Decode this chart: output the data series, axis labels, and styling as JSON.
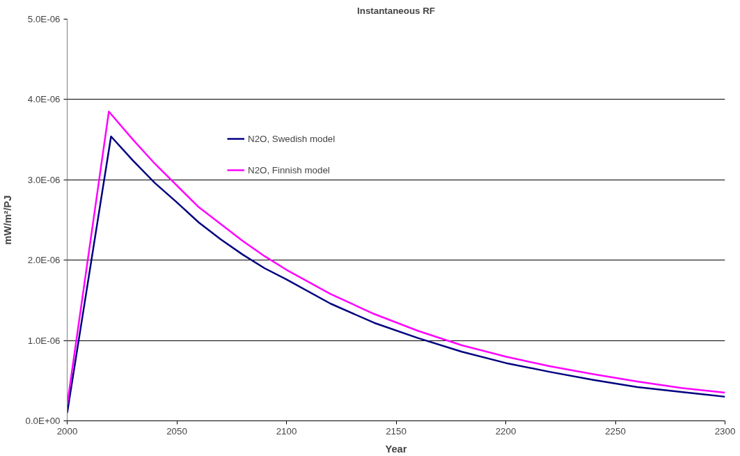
{
  "chart_data": {
    "type": "line",
    "title": "Instantaneous RF",
    "xlabel": "Year",
    "ylabel": "mW/m²/PJ",
    "x": [
      2000,
      2020,
      2030,
      2040,
      2050,
      2060,
      2070,
      2080,
      2090,
      2100,
      2120,
      2140,
      2160,
      2180,
      2200,
      2220,
      2240,
      2260,
      2280,
      2300
    ],
    "series": [
      {
        "name": "N2O, Swedish model",
        "color": "#000080",
        "values": [
          1e-07,
          3.54e-06,
          3.24e-06,
          2.96e-06,
          2.72e-06,
          2.47e-06,
          2.26e-06,
          2.07e-06,
          1.9e-06,
          1.76e-06,
          1.46e-06,
          1.22e-06,
          1.03e-06,
          8.6e-07,
          7.2e-07,
          6.1e-07,
          5.1e-07,
          4.2e-07,
          3.6e-07,
          3e-07
        ]
      },
      {
        "name": "N2O, Finnish model",
        "color": "#ff00ff",
        "x": [
          2000,
          2019,
          2030,
          2040,
          2050,
          2060,
          2070,
          2080,
          2090,
          2100,
          2120,
          2140,
          2160,
          2180,
          2200,
          2220,
          2240,
          2260,
          2280,
          2300
        ],
        "values": [
          2e-07,
          3.85e-06,
          3.5e-06,
          3.2e-06,
          2.93e-06,
          2.66e-06,
          2.45e-06,
          2.24e-06,
          2.05e-06,
          1.88e-06,
          1.58e-06,
          1.33e-06,
          1.12e-06,
          9.4e-07,
          8e-07,
          6.8e-07,
          5.8e-07,
          4.9e-07,
          4.1e-07,
          3.5e-07
        ]
      }
    ],
    "xlim": [
      2000,
      2300
    ],
    "xticks": [
      2000,
      2050,
      2100,
      2150,
      2200,
      2250,
      2300
    ],
    "ylim": [
      0,
      5e-06
    ],
    "yticks": [
      {
        "value": 0,
        "label": "0.0E+00"
      },
      {
        "value": 1e-06,
        "label": "1.0E-06"
      },
      {
        "value": 2e-06,
        "label": "2.0E-06"
      },
      {
        "value": 3e-06,
        "label": "3.0E-06"
      },
      {
        "value": 4e-06,
        "label": "4.0E-06"
      },
      {
        "value": 5e-06,
        "label": "5.0E-06"
      }
    ],
    "grid": "y",
    "legend": "top",
    "marker": "none",
    "line_style": "solid"
  }
}
